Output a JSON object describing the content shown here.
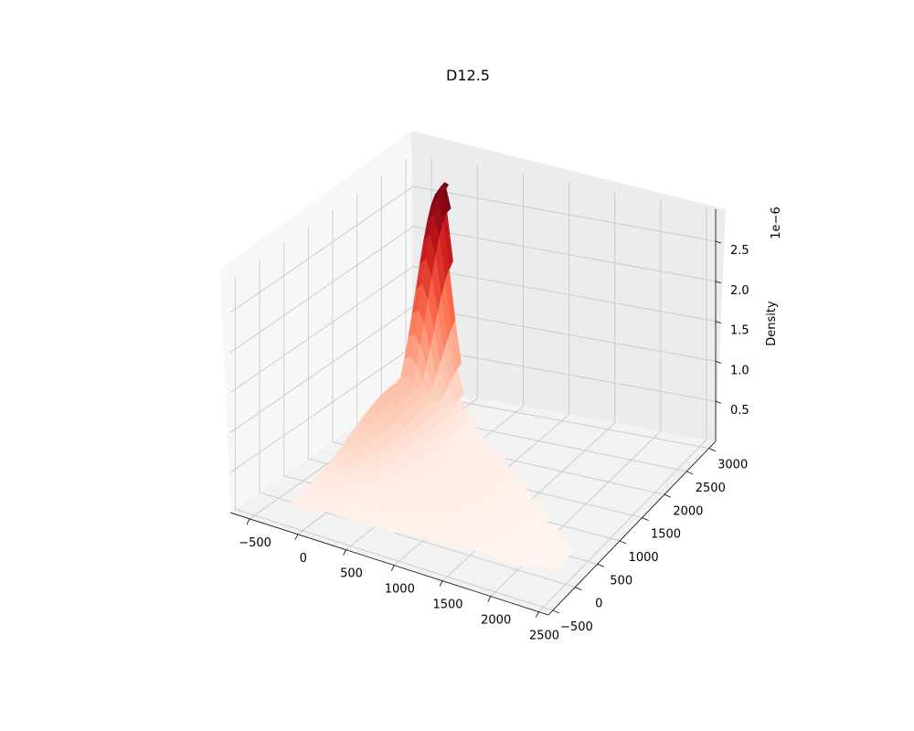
{
  "chart_data": {
    "type": "surface3d",
    "title": "D12.5",
    "xlabel": "",
    "ylabel": "",
    "zlabel": "Density",
    "z_scale_label": "1e−6",
    "x_ticks": [
      "−500",
      "0",
      "500",
      "1000",
      "1500",
      "2000",
      "2500"
    ],
    "y_ticks": [
      "−500",
      "0",
      "500",
      "1000",
      "1500",
      "2000",
      "2500",
      "3000"
    ],
    "z_ticks": [
      "0.5",
      "1.0",
      "1.5",
      "2.0",
      "2.5"
    ],
    "xlim": [
      -700,
      2600
    ],
    "ylim": [
      -600,
      3150
    ],
    "zlim": [
      0,
      2.9
    ],
    "zlim_units": "1e-6",
    "colormap": "Reds",
    "peak": {
      "x": -250,
      "y": 2900,
      "z": 2.75
    },
    "grid": true,
    "pane_color": "#f2f2f2"
  }
}
